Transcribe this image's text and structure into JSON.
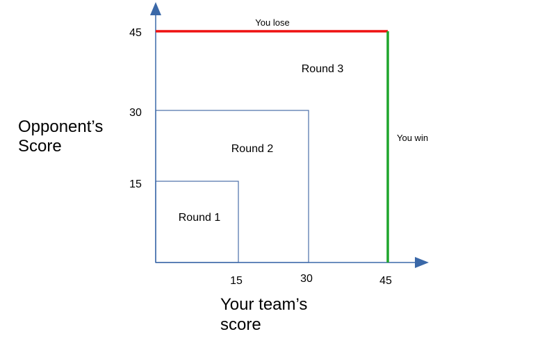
{
  "axes": {
    "x_title_line1": "Your team’s",
    "x_title_line2": "score",
    "y_title_line1": "Opponent’s",
    "y_title_line2": "Score",
    "x_ticks": [
      "15",
      "30",
      "45"
    ],
    "y_ticks": [
      "15",
      "30",
      "45"
    ],
    "axis_color": "#3a68a8"
  },
  "regions": {
    "round1": "Round 1",
    "round2": "Round 2",
    "round3": "Round 3",
    "box_color": "#4a6ea8"
  },
  "boundaries": {
    "lose_label": "You lose",
    "win_label": "You win",
    "lose_color": "#ee1111",
    "win_color": "#1ea52b"
  }
}
